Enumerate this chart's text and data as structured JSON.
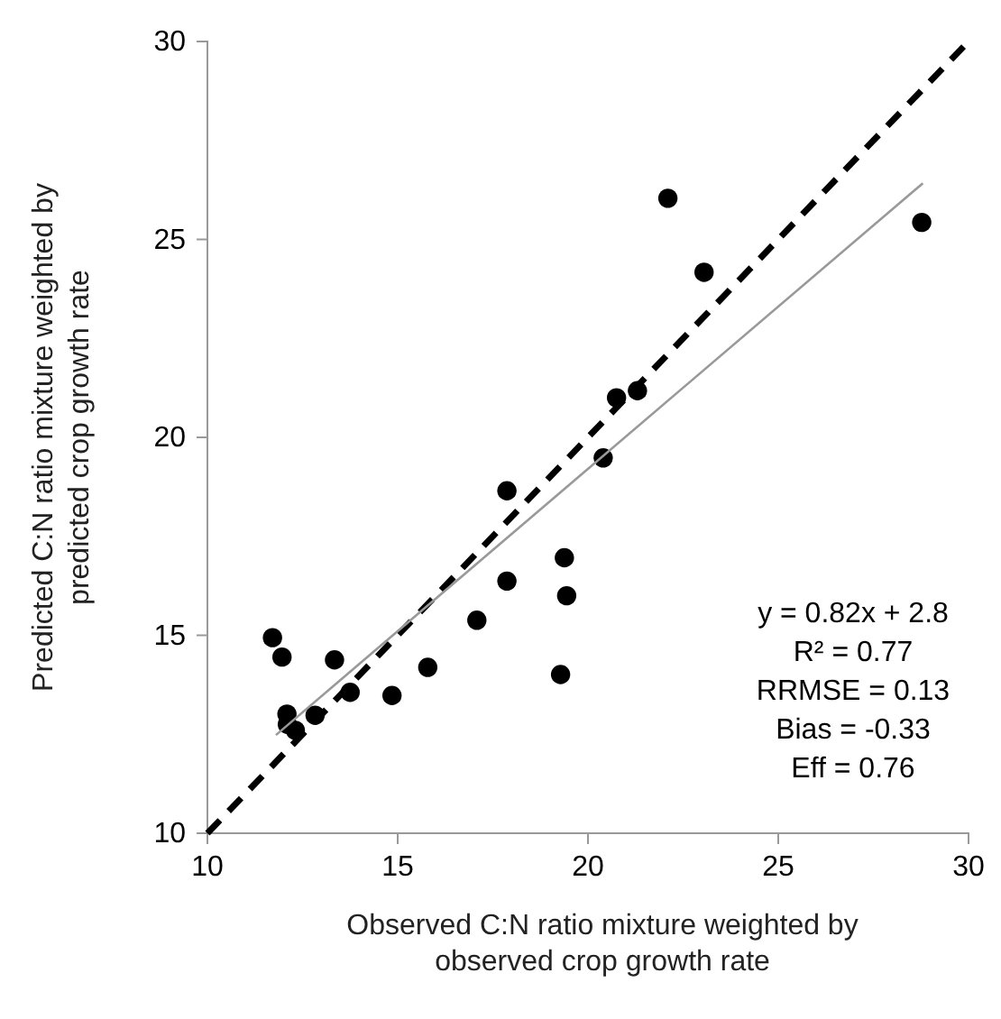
{
  "chart_data": {
    "type": "scatter",
    "xlabel": "Observed C:N ratio mixture weighted by observed crop growth rate",
    "ylabel": "Predicted C:N ratio  mixture weighted by predicted crop growth rate",
    "xlim": [
      10,
      30
    ],
    "ylim": [
      10,
      30
    ],
    "xticks": [
      10,
      15,
      20,
      25,
      30
    ],
    "yticks": [
      10,
      15,
      20,
      25,
      30
    ],
    "grid": false,
    "series": [
      {
        "color": "#000000",
        "marker": "circle",
        "x": [
          22.1,
          23.05,
          28.77,
          21.3,
          20.75,
          20.4,
          17.87,
          19.38,
          17.87,
          19.44,
          17.08,
          19.28,
          11.71,
          11.96,
          13.34,
          15.79,
          13.75,
          14.85,
          12.83,
          12.09,
          12.1,
          12.31
        ],
        "values": [
          26.04,
          24.17,
          25.43,
          21.18,
          21.0,
          19.48,
          18.65,
          16.96,
          16.37,
          16.0,
          15.38,
          14.01,
          14.94,
          14.45,
          14.38,
          14.19,
          13.56,
          13.48,
          12.98,
          13.01,
          12.75,
          12.6
        ]
      },
      {
        "type": "line",
        "color": "#000000",
        "line_style": "dashed",
        "marker": "none",
        "x": [
          10,
          30
        ],
        "values": [
          10,
          30
        ]
      },
      {
        "type": "line",
        "color": "#999999",
        "line_style": "solid",
        "marker": "none",
        "x": [
          11.8,
          28.8
        ],
        "values": [
          12.48,
          26.42
        ]
      }
    ],
    "annotations": [
      "y = 0.82x + 2.8",
      "R² = 0.77",
      "RRMSE = 0.13",
      "Bias = -0.33",
      "Eff = 0.76"
    ]
  }
}
